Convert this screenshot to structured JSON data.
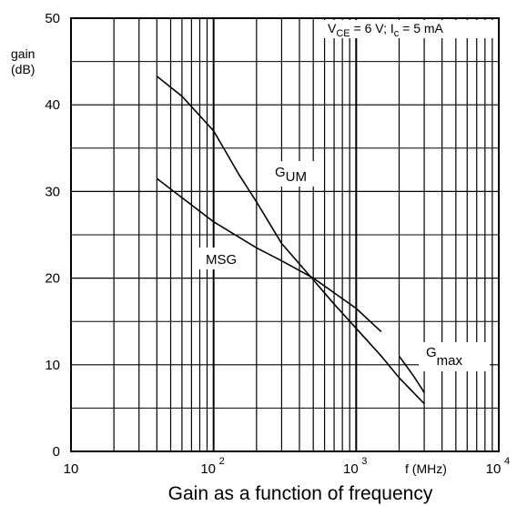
{
  "chart_data": {
    "type": "line",
    "title": "Gain as a function of frequency",
    "condition": {
      "vce": "V",
      "vce_sub": "CE",
      "vce_val": " = 6 V; I",
      "ic_sub": "c",
      "ic_val": " = 5 mA"
    },
    "ylabel_line1": "gain",
    "ylabel_line2": "(dB)",
    "xlabel": "f (MHz)",
    "xscale": "log",
    "xlim": [
      10,
      10000
    ],
    "ylim": [
      0,
      50
    ],
    "grid": true,
    "y_ticks": [
      "0",
      "10",
      "20",
      "30",
      "40",
      "50"
    ],
    "x_ticks": [
      {
        "base": "10",
        "exp": ""
      },
      {
        "base": "10",
        "exp": "2"
      },
      {
        "base": "10",
        "exp": "3"
      },
      {
        "base": "10",
        "exp": "4"
      }
    ],
    "series": [
      {
        "name": "G",
        "name_sub": "UM",
        "x": [
          40,
          60,
          100,
          150,
          200,
          300,
          500,
          700,
          1000,
          1500,
          2000,
          3000
        ],
        "y": [
          43.3,
          41.0,
          37.0,
          32.0,
          28.8,
          24.0,
          19.8,
          17.0,
          14.2,
          11.0,
          8.5,
          5.5
        ]
      },
      {
        "name": "MSG",
        "x": [
          40,
          100,
          200,
          300,
          500,
          1000,
          1500
        ],
        "y": [
          31.5,
          26.5,
          23.5,
          22.0,
          20.0,
          16.5,
          13.8
        ]
      },
      {
        "name": "G",
        "name_sub": "max",
        "x": [
          2000,
          2500,
          3000
        ],
        "y": [
          11.0,
          8.8,
          6.8
        ]
      }
    ]
  }
}
